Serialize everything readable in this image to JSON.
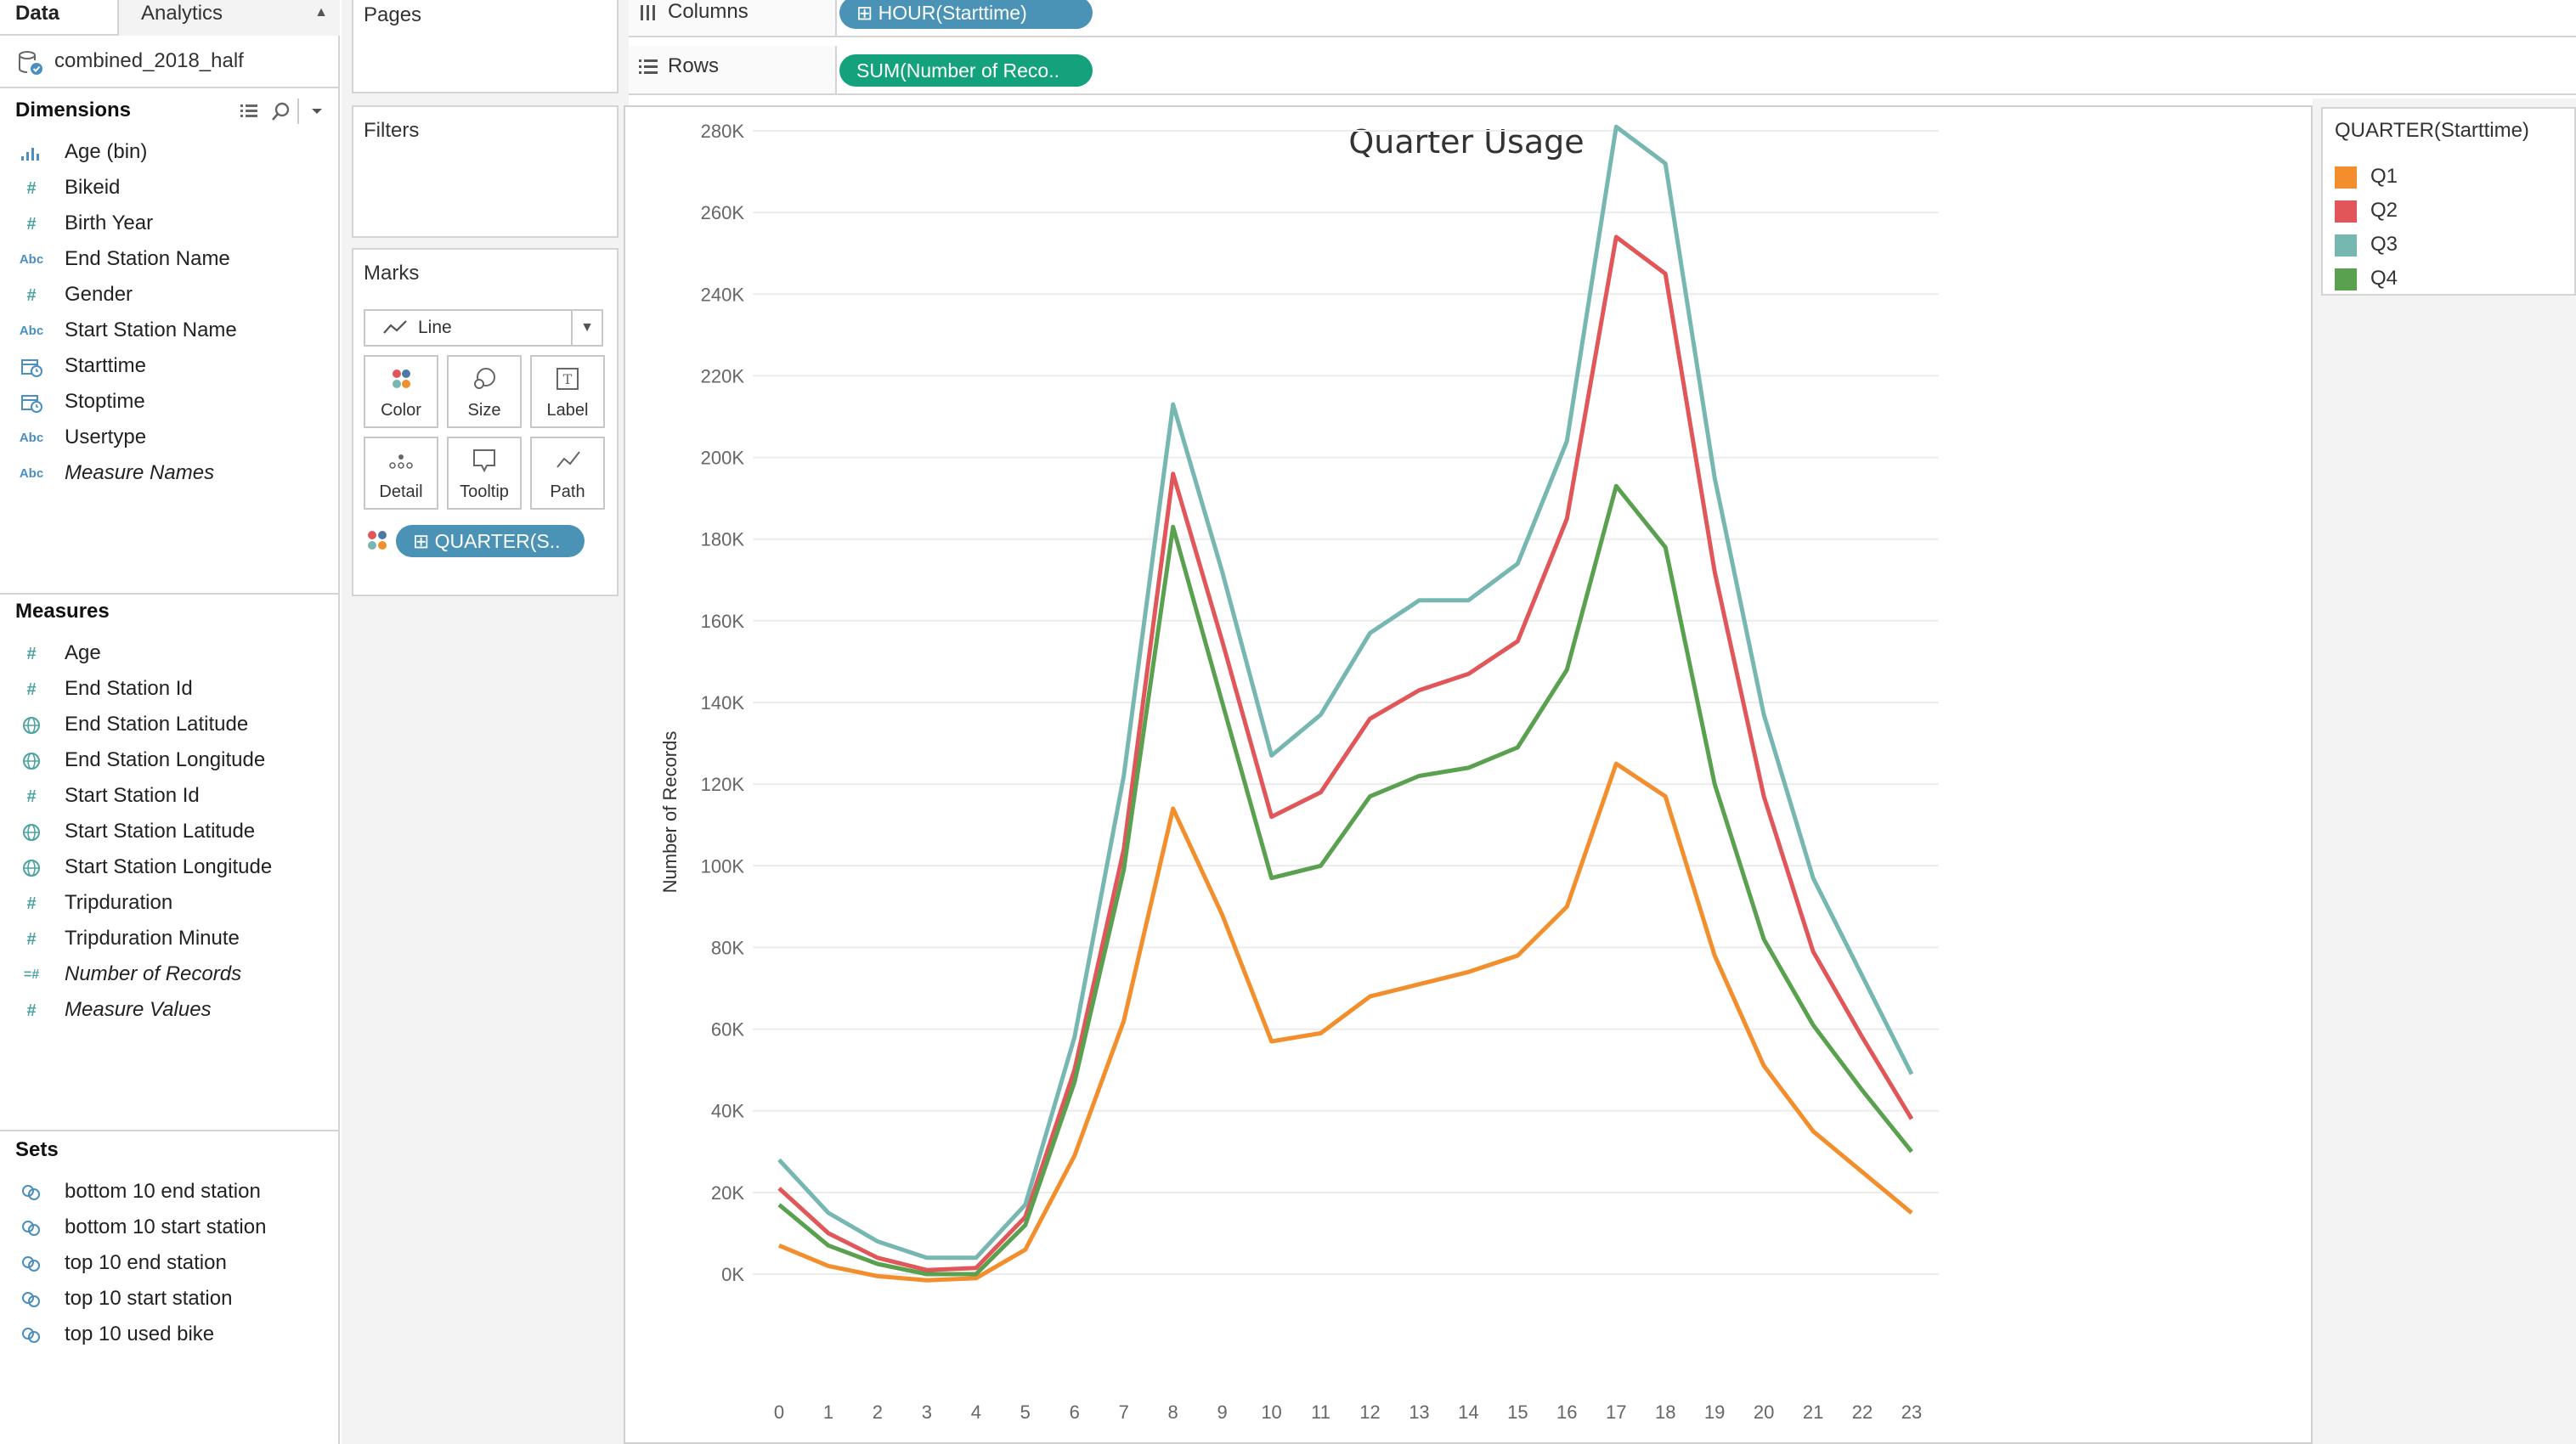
{
  "tabs": {
    "data": "Data",
    "analytics": "Analytics"
  },
  "datasource": {
    "name": "combined_2018_half"
  },
  "dimensions": {
    "header": "Dimensions",
    "items": [
      {
        "label": "Age (bin)",
        "icon": "bin-icon"
      },
      {
        "label": "Bikeid",
        "icon": "number-icon"
      },
      {
        "label": "Birth Year",
        "icon": "number-icon"
      },
      {
        "label": "End Station Name",
        "icon": "string-icon"
      },
      {
        "label": "Gender",
        "icon": "number-icon"
      },
      {
        "label": "Start Station Name",
        "icon": "string-icon"
      },
      {
        "label": "Starttime",
        "icon": "datetime-icon"
      },
      {
        "label": "Stoptime",
        "icon": "datetime-icon"
      },
      {
        "label": "Usertype",
        "icon": "string-icon"
      },
      {
        "label": "Measure Names",
        "icon": "string-icon"
      }
    ]
  },
  "measures": {
    "header": "Measures",
    "items": [
      {
        "label": "Age",
        "icon": "number-icon"
      },
      {
        "label": "End Station Id",
        "icon": "number-icon"
      },
      {
        "label": "End Station Latitude",
        "icon": "globe-icon"
      },
      {
        "label": "End Station Longitude",
        "icon": "globe-icon"
      },
      {
        "label": "Start Station Id",
        "icon": "number-icon"
      },
      {
        "label": "Start Station Latitude",
        "icon": "globe-icon"
      },
      {
        "label": "Start Station Longitude",
        "icon": "globe-icon"
      },
      {
        "label": "Tripduration",
        "icon": "number-icon"
      },
      {
        "label": "Tripduration Minute",
        "icon": "number-icon"
      },
      {
        "label": "Number of Records",
        "icon": "calculated-number-icon"
      },
      {
        "label": "Measure Values",
        "icon": "number-icon"
      }
    ]
  },
  "sets": {
    "header": "Sets",
    "items": [
      {
        "label": "bottom 10 end station",
        "icon": "set-icon"
      },
      {
        "label": "bottom 10 start station",
        "icon": "set-icon"
      },
      {
        "label": "top 10 end station",
        "icon": "set-icon"
      },
      {
        "label": "top 10 start station",
        "icon": "set-icon"
      },
      {
        "label": "top 10 used bike",
        "icon": "set-icon"
      }
    ]
  },
  "cards": {
    "pages": "Pages",
    "filters": "Filters",
    "marks": "Marks",
    "mark_type": "Line",
    "mark_buttons": {
      "color": "Color",
      "size": "Size",
      "label": "Label",
      "detail": "Detail",
      "tooltip": "Tooltip",
      "path": "Path"
    },
    "color_pill": "QUARTER(S.."
  },
  "shelves": {
    "columns_label": "Columns",
    "columns_pill": "HOUR(Starttime)",
    "rows_label": "Rows",
    "rows_pill": "SUM(Number of Reco.."
  },
  "legend": {
    "title": "QUARTER(Starttime)",
    "items": [
      {
        "label": "Q1",
        "color": "#f28e2b"
      },
      {
        "label": "Q2",
        "color": "#e15759"
      },
      {
        "label": "Q3",
        "color": "#76b7b2"
      },
      {
        "label": "Q4",
        "color": "#59a14f"
      }
    ]
  },
  "chart_data": {
    "type": "line",
    "title": "Quarter Usage",
    "xlabel": "",
    "ylabel": "Number of Records",
    "x": [
      0,
      1,
      2,
      3,
      4,
      5,
      6,
      7,
      8,
      9,
      10,
      11,
      12,
      13,
      14,
      15,
      16,
      17,
      18,
      19,
      20,
      21,
      22,
      23
    ],
    "ylim": [
      0,
      280000
    ],
    "yticks": [
      0,
      20000,
      40000,
      60000,
      80000,
      100000,
      120000,
      140000,
      160000,
      180000,
      200000,
      220000,
      240000,
      260000,
      280000
    ],
    "ytick_labels": [
      "0K",
      "20K",
      "40K",
      "60K",
      "80K",
      "100K",
      "120K",
      "140K",
      "160K",
      "180K",
      "200K",
      "220K",
      "240K",
      "260K",
      "280K"
    ],
    "grid": "horizontal",
    "legend_position": "right",
    "series": [
      {
        "name": "Q1",
        "color": "#f28e2b",
        "values": [
          7000,
          2000,
          -500,
          -1500,
          -1000,
          6000,
          29000,
          62000,
          114000,
          88000,
          57000,
          59000,
          68000,
          71000,
          74000,
          78000,
          90000,
          125000,
          117000,
          78000,
          51000,
          35000,
          25000,
          15000
        ]
      },
      {
        "name": "Q2",
        "color": "#e15759",
        "values": [
          21000,
          10000,
          4000,
          1000,
          1500,
          14000,
          50000,
          104000,
          196000,
          155000,
          112000,
          118000,
          136000,
          143000,
          147000,
          155000,
          185000,
          254000,
          245000,
          172000,
          117000,
          79000,
          58000,
          38000
        ]
      },
      {
        "name": "Q3",
        "color": "#76b7b2",
        "values": [
          28000,
          15000,
          8000,
          4000,
          4000,
          17000,
          58000,
          122000,
          213000,
          172000,
          127000,
          137000,
          157000,
          165000,
          165000,
          174000,
          204000,
          281000,
          272000,
          195000,
          137000,
          97000,
          73000,
          49000
        ]
      },
      {
        "name": "Q4",
        "color": "#59a14f",
        "values": [
          17000,
          7000,
          2500,
          0,
          0,
          12000,
          47000,
          99000,
          183000,
          140000,
          97000,
          100000,
          117000,
          122000,
          124000,
          129000,
          148000,
          193000,
          178000,
          120000,
          82000,
          61000,
          45000,
          30000
        ]
      }
    ]
  }
}
